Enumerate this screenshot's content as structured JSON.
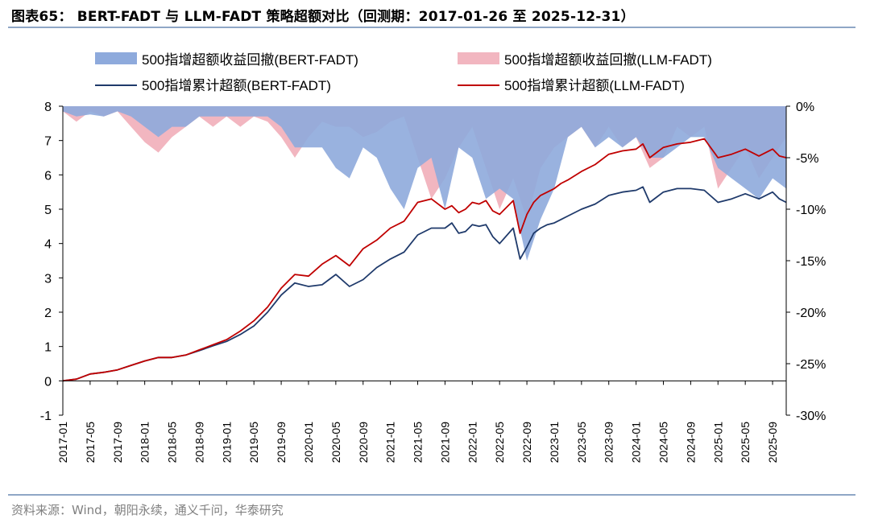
{
  "header": {
    "title": "图表65： BERT-FADT 与 LLM-FADT 策略超额对比（回测期：2017-01-26 至 2025-12-31）"
  },
  "footer": {
    "source": "资料来源：Wind，朝阳永续，通义千问，华泰研究"
  },
  "colors": {
    "bert_area": "#8eaadc",
    "llm_area": "#f2b6c0",
    "bert_line": "#1f3a6b",
    "llm_line": "#c00000",
    "rule": "#8fa7c6"
  },
  "chart_data": {
    "type": "line",
    "title": "BERT-FADT 与 LLM-FADT 策略超额对比",
    "x_ticks": [
      "2017-01",
      "2017-05",
      "2017-09",
      "2018-01",
      "2018-05",
      "2018-09",
      "2019-01",
      "2019-05",
      "2019-09",
      "2020-01",
      "2020-05",
      "2020-09",
      "2021-01",
      "2021-05",
      "2021-09",
      "2022-01",
      "2022-05",
      "2022-09",
      "2023-01",
      "2023-05",
      "2023-09",
      "2024-01",
      "2024-05",
      "2024-09",
      "2025-01",
      "2025-05",
      "2025-09"
    ],
    "y_left": {
      "ticks": [
        "-1",
        "0",
        "1",
        "2",
        "3",
        "4",
        "5",
        "6",
        "7",
        "8"
      ],
      "range": [
        -1,
        8
      ]
    },
    "y_right": {
      "ticks": [
        "0%",
        "-5%",
        "-10%",
        "-15%",
        "-20%",
        "-25%",
        "-30%"
      ],
      "range": [
        -30,
        0
      ]
    },
    "legend": [
      "500指增超额收益回撤(BERT-FADT)",
      "500指增超额收益回撤(LLM-FADT)",
      "500指增累计超额(BERT-FADT)",
      "500指增累计超额(LLM-FADT)"
    ],
    "series": [
      {
        "name": "500指增累计超额(BERT-FADT)",
        "kind": "line",
        "axis": "left",
        "x": [
          0,
          2,
          4,
          6,
          8,
          10,
          12,
          14,
          16,
          18,
          20,
          22,
          24,
          26,
          28,
          30,
          32,
          34,
          36,
          38,
          40,
          42,
          44,
          46,
          48,
          50,
          52,
          54,
          56,
          57,
          58,
          59,
          60,
          61,
          62,
          63,
          64,
          66,
          67,
          68,
          69,
          70,
          71,
          72,
          73,
          74,
          76,
          78,
          80,
          82,
          84,
          85,
          86,
          87,
          88,
          90,
          92,
          94,
          96,
          98,
          100,
          102,
          104,
          105,
          106
        ],
        "values": [
          0,
          0.05,
          0.2,
          0.25,
          0.32,
          0.45,
          0.58,
          0.68,
          0.68,
          0.75,
          0.88,
          1.02,
          1.15,
          1.35,
          1.6,
          2.0,
          2.5,
          2.85,
          2.75,
          2.8,
          3.1,
          2.75,
          2.95,
          3.3,
          3.55,
          3.75,
          4.25,
          4.45,
          4.45,
          4.6,
          4.3,
          4.35,
          4.55,
          4.5,
          4.55,
          4.2,
          4.0,
          4.45,
          3.55,
          3.9,
          4.3,
          4.45,
          4.55,
          4.6,
          4.7,
          4.8,
          5.0,
          5.15,
          5.4,
          5.5,
          5.55,
          5.65,
          5.2,
          5.35,
          5.5,
          5.6,
          5.6,
          5.55,
          5.2,
          5.3,
          5.45,
          5.3,
          5.5,
          5.3,
          5.2
        ]
      },
      {
        "name": "500指增累计超额(LLM-FADT)",
        "kind": "line",
        "axis": "left",
        "x": [
          0,
          2,
          4,
          6,
          8,
          10,
          12,
          14,
          16,
          18,
          20,
          22,
          24,
          26,
          28,
          30,
          32,
          34,
          36,
          38,
          40,
          42,
          44,
          46,
          48,
          50,
          52,
          54,
          56,
          57,
          58,
          59,
          60,
          61,
          62,
          63,
          64,
          66,
          67,
          68,
          69,
          70,
          71,
          72,
          73,
          74,
          76,
          78,
          80,
          82,
          84,
          85,
          86,
          87,
          88,
          90,
          92,
          94,
          96,
          98,
          100,
          102,
          104,
          105,
          106
        ],
        "values": [
          0,
          0.05,
          0.2,
          0.25,
          0.32,
          0.45,
          0.58,
          0.68,
          0.68,
          0.75,
          0.9,
          1.05,
          1.2,
          1.45,
          1.75,
          2.15,
          2.7,
          3.1,
          3.05,
          3.4,
          3.65,
          3.35,
          3.85,
          4.1,
          4.45,
          4.65,
          5.2,
          5.3,
          5.0,
          5.1,
          4.9,
          5.0,
          5.2,
          5.15,
          5.25,
          4.95,
          4.85,
          5.25,
          4.3,
          4.85,
          5.2,
          5.4,
          5.5,
          5.6,
          5.75,
          5.85,
          6.1,
          6.3,
          6.6,
          6.7,
          6.75,
          6.9,
          6.5,
          6.65,
          6.8,
          6.9,
          6.95,
          7.05,
          6.5,
          6.6,
          6.75,
          6.55,
          6.75,
          6.55,
          6.5
        ]
      },
      {
        "name": "500指增超额收益回撤(LLM-FADT)",
        "kind": "area",
        "axis": "right",
        "x": [
          0,
          2,
          4,
          6,
          8,
          10,
          12,
          14,
          16,
          18,
          20,
          22,
          24,
          26,
          28,
          30,
          32,
          34,
          36,
          38,
          40,
          42,
          44,
          46,
          48,
          50,
          52,
          54,
          56,
          58,
          60,
          62,
          64,
          66,
          68,
          70,
          72,
          74,
          76,
          78,
          80,
          82,
          84,
          86,
          88,
          90,
          92,
          94,
          96,
          98,
          100,
          102,
          104,
          106
        ],
        "values": [
          -0.5,
          -1.5,
          -0.5,
          -1,
          -0.5,
          -2,
          -3.5,
          -4.5,
          -3,
          -2,
          -1,
          -2,
          -1,
          -2,
          -1,
          -1.5,
          -3,
          -5,
          -3,
          -1.5,
          -2,
          -2,
          -3,
          -2.5,
          -1.5,
          -1,
          -5,
          -9,
          -7,
          -4,
          -2,
          -6,
          -10,
          -7,
          -11,
          -6,
          -4,
          -3,
          -2,
          -4,
          -2,
          -4,
          -3,
          -6,
          -5,
          -2,
          -3,
          -2,
          -8,
          -6,
          -4,
          -7,
          -5,
          -3
        ]
      },
      {
        "name": "500指增超额收益回撤(BERT-FADT)",
        "kind": "area",
        "axis": "right",
        "x": [
          0,
          2,
          4,
          6,
          8,
          10,
          12,
          14,
          16,
          18,
          20,
          22,
          24,
          26,
          28,
          30,
          32,
          34,
          36,
          38,
          40,
          42,
          44,
          46,
          48,
          50,
          52,
          54,
          56,
          58,
          60,
          62,
          64,
          66,
          68,
          70,
          72,
          74,
          76,
          78,
          80,
          82,
          84,
          86,
          88,
          90,
          92,
          94,
          96,
          98,
          100,
          102,
          104,
          106
        ],
        "values": [
          -0.5,
          -1,
          -0.8,
          -1,
          -0.5,
          -1,
          -2,
          -3,
          -2,
          -2,
          -1,
          -1,
          -1,
          -1,
          -1,
          -1,
          -2,
          -4,
          -4,
          -4,
          -6,
          -7,
          -4,
          -5,
          -8,
          -10,
          -6,
          -5,
          -10,
          -4,
          -5,
          -9,
          -8,
          -9,
          -15,
          -11,
          -8,
          -3,
          -2,
          -4,
          -3,
          -4,
          -3,
          -5,
          -5,
          -4,
          -3,
          -3,
          -6,
          -7,
          -8,
          -9,
          -7,
          -8
        ]
      }
    ]
  }
}
